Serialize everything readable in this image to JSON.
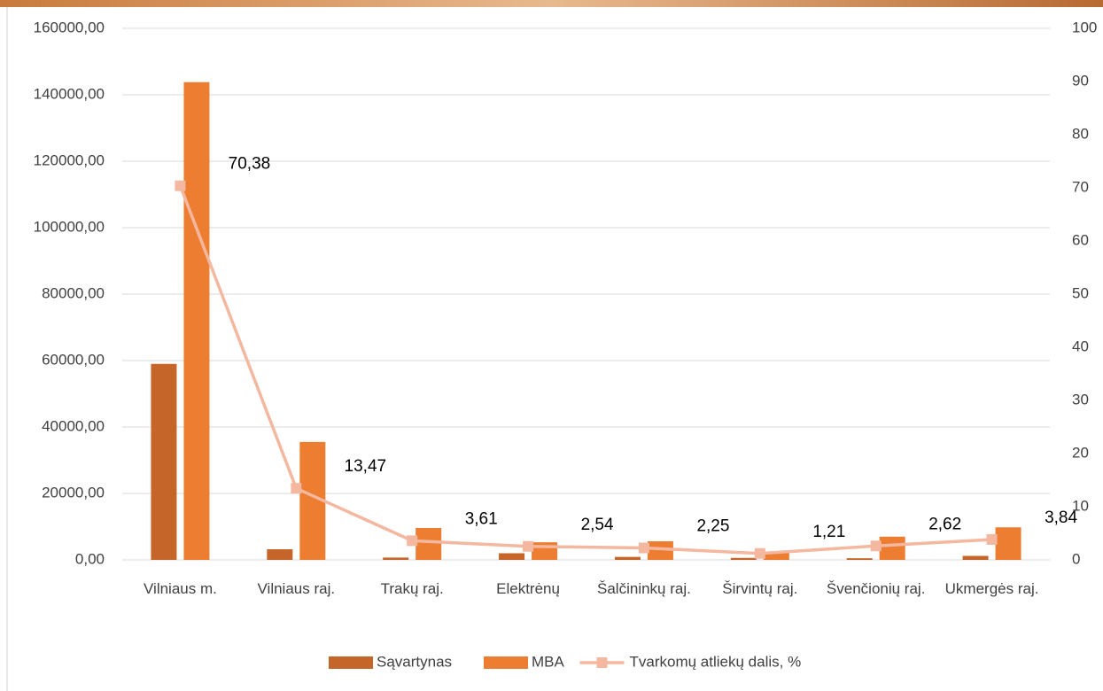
{
  "chart_data": {
    "type": "bar",
    "categories": [
      "Vilniaus m.",
      "Vilniaus raj.",
      "Trakų raj.",
      "Elektrėnų",
      "Šalčininkų raj.",
      "Širvintų raj.",
      "Švenčionių raj.",
      "Ukmergės raj."
    ],
    "series": [
      {
        "name": "Sąvartynas",
        "type": "bar",
        "color": "#c5652a",
        "values": [
          59000,
          3200,
          700,
          2000,
          900,
          600,
          500,
          1200
        ]
      },
      {
        "name": "MBA",
        "type": "bar",
        "color": "#ed7d31",
        "values": [
          143800,
          35500,
          9600,
          5300,
          5600,
          2300,
          7000,
          9800
        ]
      },
      {
        "name": "Tvarkomų atliekų dalis, %",
        "type": "line",
        "axis": "y2",
        "color": "#f4b79f",
        "values": [
          70.38,
          13.47,
          3.61,
          2.54,
          2.25,
          1.21,
          2.62,
          3.84
        ],
        "value_labels": [
          "70,38",
          "13,47",
          "3,61",
          "2,54",
          "2,25",
          "1,21",
          "2,62",
          "3,84"
        ]
      }
    ],
    "ylim": [
      0,
      160000
    ],
    "yticks": [
      {
        "value": 0,
        "label": "0,00"
      },
      {
        "value": 20000,
        "label": "20000,00"
      },
      {
        "value": 40000,
        "label": "40000,00"
      },
      {
        "value": 60000,
        "label": "60000,00"
      },
      {
        "value": 80000,
        "label": "80000,00"
      },
      {
        "value": 100000,
        "label": "100000,00"
      },
      {
        "value": 120000,
        "label": "120000,00"
      },
      {
        "value": 140000,
        "label": "140000,00"
      },
      {
        "value": 160000,
        "label": "160000,00"
      }
    ],
    "y2lim": [
      0,
      100
    ],
    "y2ticks": [
      0,
      10,
      20,
      30,
      40,
      50,
      60,
      70,
      80,
      90,
      100
    ],
    "grid": true,
    "legend": "bottom"
  }
}
